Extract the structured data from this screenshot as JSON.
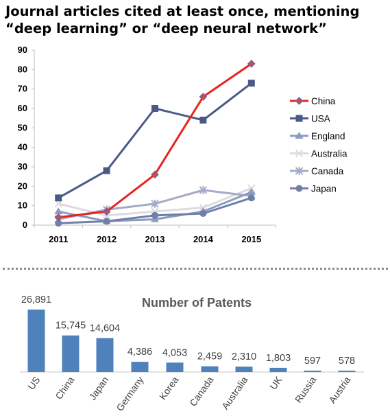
{
  "title": {
    "line1": "Journal articles cited at least once, mentioning",
    "line2": "“deep learning” or “deep neural network”"
  },
  "chart_data": [
    {
      "type": "line",
      "title": "Journal articles cited at least once, mentioning “deep learning” or “deep neural network”",
      "x": [
        "2011",
        "2012",
        "2013",
        "2014",
        "2015"
      ],
      "ylim": [
        0,
        90
      ],
      "yticks": [
        0,
        10,
        20,
        30,
        40,
        50,
        60,
        70,
        80,
        90
      ],
      "grid": false,
      "legend": "right",
      "series": [
        {
          "name": "China",
          "color": "#e8231f",
          "marker": "diamond",
          "values": [
            4,
            7,
            26,
            66,
            83
          ]
        },
        {
          "name": "USA",
          "color": "#4a5a87",
          "marker": "square",
          "values": [
            14,
            28,
            60,
            54,
            73
          ]
        },
        {
          "name": "England",
          "color": "#8a9cc2",
          "marker": "triangle",
          "values": [
            7,
            2,
            3,
            7,
            17
          ]
        },
        {
          "name": "Australia",
          "color": "#dcdcdc",
          "marker": "x",
          "values": [
            11,
            5,
            7,
            9,
            19
          ]
        },
        {
          "name": "Canada",
          "color": "#a4aac8",
          "marker": "star",
          "values": [
            3,
            8,
            11,
            18,
            15
          ]
        },
        {
          "name": "Japan",
          "color": "#6f7fa8",
          "marker": "circle",
          "values": [
            1,
            2,
            5,
            6,
            14
          ]
        }
      ]
    },
    {
      "type": "bar",
      "title": "Number of Patents",
      "categories": [
        "US",
        "China",
        "Japan",
        "Germany",
        "Korea",
        "Canada",
        "Australia",
        "UK",
        "Russia",
        "Austria"
      ],
      "values": [
        26891,
        15745,
        14604,
        4386,
        4053,
        2459,
        2310,
        1803,
        597,
        578
      ],
      "value_labels": [
        "26,891",
        "15,745",
        "14,604",
        "4,386",
        "4,053",
        "2,459",
        "2,310",
        "1,803",
        "597",
        "578"
      ],
      "color": "#4f81bd",
      "axis_color": "#d9d9d9"
    }
  ]
}
